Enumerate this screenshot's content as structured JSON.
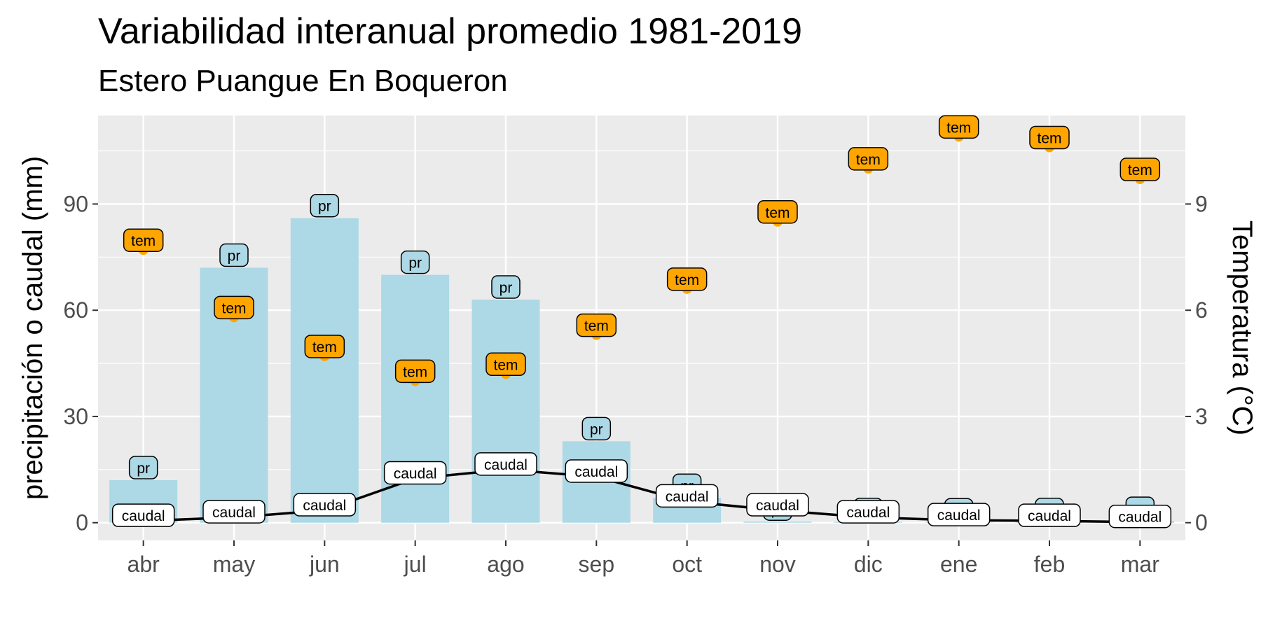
{
  "chart_data": {
    "type": "bar",
    "title": "Variabilidad interanual promedio 1981-2019",
    "subtitle": "Estero Puangue En Boqueron",
    "ylabel": "precipitación o caudal (mm)",
    "y2label": "Temperatura (°C)",
    "categories": [
      "abr",
      "may",
      "jun",
      "jul",
      "ago",
      "sep",
      "oct",
      "nov",
      "dic",
      "ene",
      "feb",
      "mar"
    ],
    "ylim": [
      -5,
      115
    ],
    "yticks": [
      0,
      30,
      60,
      90
    ],
    "y2lim": [
      -0.5,
      11.5
    ],
    "y2ticks": [
      0,
      3,
      6,
      9
    ],
    "grid": true,
    "colors": {
      "panel_bg": "#ebebeb",
      "grid_major": "#ffffff",
      "bar": "#add8e6",
      "line": "#000000",
      "temp_point": "#ffa500",
      "pr_label_fill": "#add8e6",
      "tem_label_fill": "#ffa500",
      "caudal_label_fill": "#ffffff"
    },
    "series": [
      {
        "name": "pr",
        "type": "bar",
        "axis": "left",
        "label": "pr",
        "values": [
          12,
          72,
          86,
          70,
          63,
          23,
          7,
          0.3,
          0.2,
          0.1,
          0.2,
          0.5
        ]
      },
      {
        "name": "caudal",
        "type": "line",
        "axis": "left",
        "label": "caudal",
        "values": [
          0.5,
          1.5,
          3.5,
          12.5,
          15,
          13,
          6,
          3.5,
          1.5,
          0.7,
          0.5,
          0.2
        ]
      },
      {
        "name": "tem",
        "type": "scatter",
        "axis": "right",
        "label": "tem",
        "values": [
          7.7,
          5.8,
          4.7,
          4.0,
          4.2,
          5.3,
          6.6,
          8.5,
          10.0,
          10.9,
          10.6,
          9.7
        ]
      }
    ]
  }
}
